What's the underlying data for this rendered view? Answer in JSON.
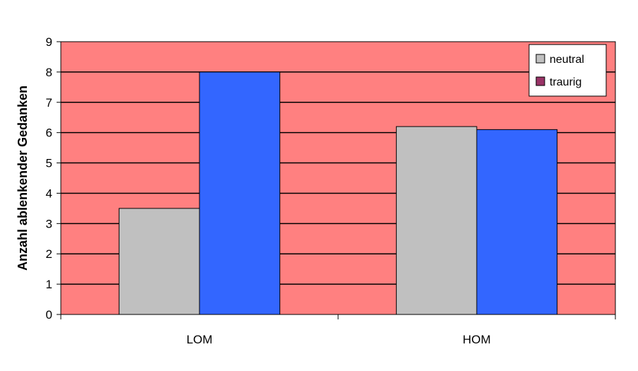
{
  "chart_data": {
    "type": "bar",
    "title": "",
    "xlabel": "",
    "ylabel": "Anzahl ablenkender Gedanken",
    "categories": [
      "LOM",
      "HOM"
    ],
    "series": [
      {
        "name": "neutral",
        "values": [
          3.5,
          6.2
        ],
        "color": "#c0c0c0"
      },
      {
        "name": "traurig",
        "values": [
          8.0,
          6.1
        ],
        "color": "#3366ff"
      }
    ],
    "legend_colors": [
      "#c0c0c0",
      "#993366"
    ],
    "ylim": [
      0,
      9
    ],
    "yticks": [
      "0",
      "1",
      "2",
      "3",
      "4",
      "5",
      "6",
      "7",
      "8",
      "9"
    ],
    "grid": true,
    "plot_background": "#ff8080",
    "legend_position": "top-right"
  }
}
